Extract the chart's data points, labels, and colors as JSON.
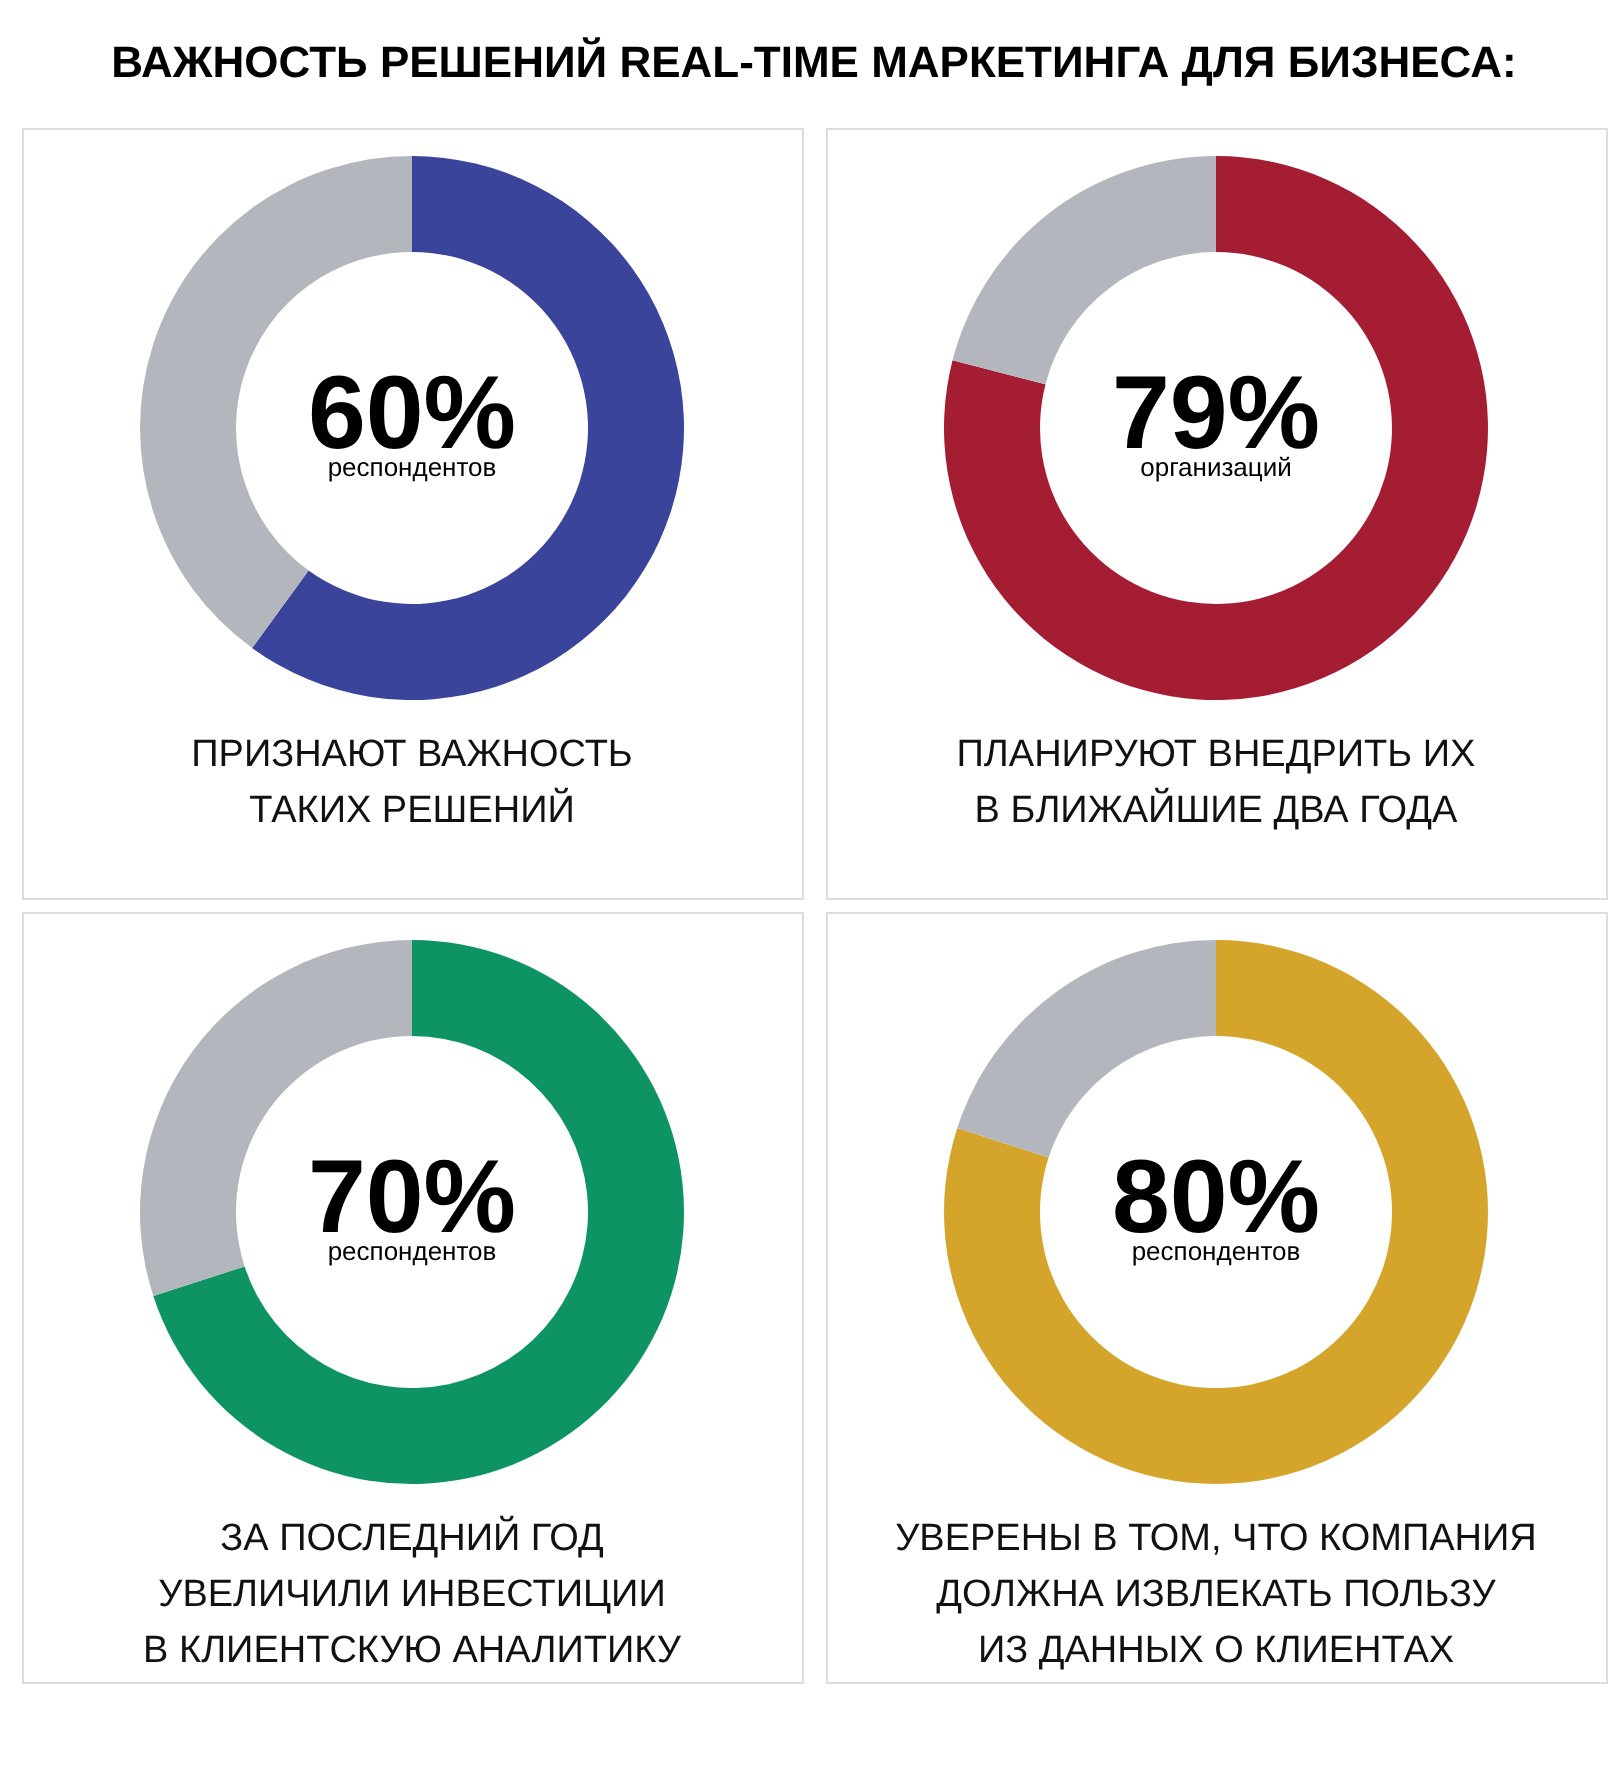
{
  "chart_data": [
    {
      "type": "donut",
      "title": "ВАЖНОСТЬ РЕШЕНИЙ REAL-TIME МАРКЕТИНГА ДЛЯ БИЗНЕСА:",
      "categories": [
        null,
        null
      ],
      "values": [
        60,
        40
      ],
      "colors": [
        "#3a449a",
        "#b3b7bd"
      ],
      "value_labels": [
        "60%",
        null
      ],
      "annotations": [
        "респондентов",
        "ПРИЗНАЮТ ВАЖНОСТЬ\nТАКИХ РЕШЕНИЙ"
      ],
      "legend": false
    },
    {
      "type": "donut",
      "categories": [
        null,
        null
      ],
      "values": [
        79,
        21
      ],
      "colors": [
        "#a51d33",
        "#b3b7bd"
      ],
      "value_labels": [
        "79%",
        null
      ],
      "annotations": [
        "организаций",
        "ПЛАНИРУЮТ ВНЕДРИТЬ ИХ\nВ БЛИЖАЙШИЕ ДВА ГОДА"
      ],
      "legend": false
    },
    {
      "type": "donut",
      "categories": [
        null,
        null
      ],
      "values": [
        70,
        30
      ],
      "colors": [
        "#0e9462",
        "#b3b7bd"
      ],
      "value_labels": [
        "70%",
        null
      ],
      "annotations": [
        "респондентов",
        "ЗА ПОСЛЕДНИЙ ГОД\nУВЕЛИЧИЛИ ИНВЕСТИЦИИ\nВ КЛИЕНТСКУЮ АНАЛИТИКУ"
      ],
      "legend": false
    },
    {
      "type": "donut",
      "categories": [
        null,
        null
      ],
      "values": [
        80,
        20
      ],
      "colors": [
        "#d5a52b",
        "#b3b7bd"
      ],
      "value_labels": [
        "80%",
        null
      ],
      "annotations": [
        "респондентов",
        "УВЕРЕНЫ В ТОМ, ЧТО КОМПАНИЯ\nДОЛЖНА ИЗВЛЕКАТЬ ПОЛЬЗУ\nИЗ ДАННЫХ О КЛИЕНТАХ"
      ],
      "legend": false
    }
  ]
}
